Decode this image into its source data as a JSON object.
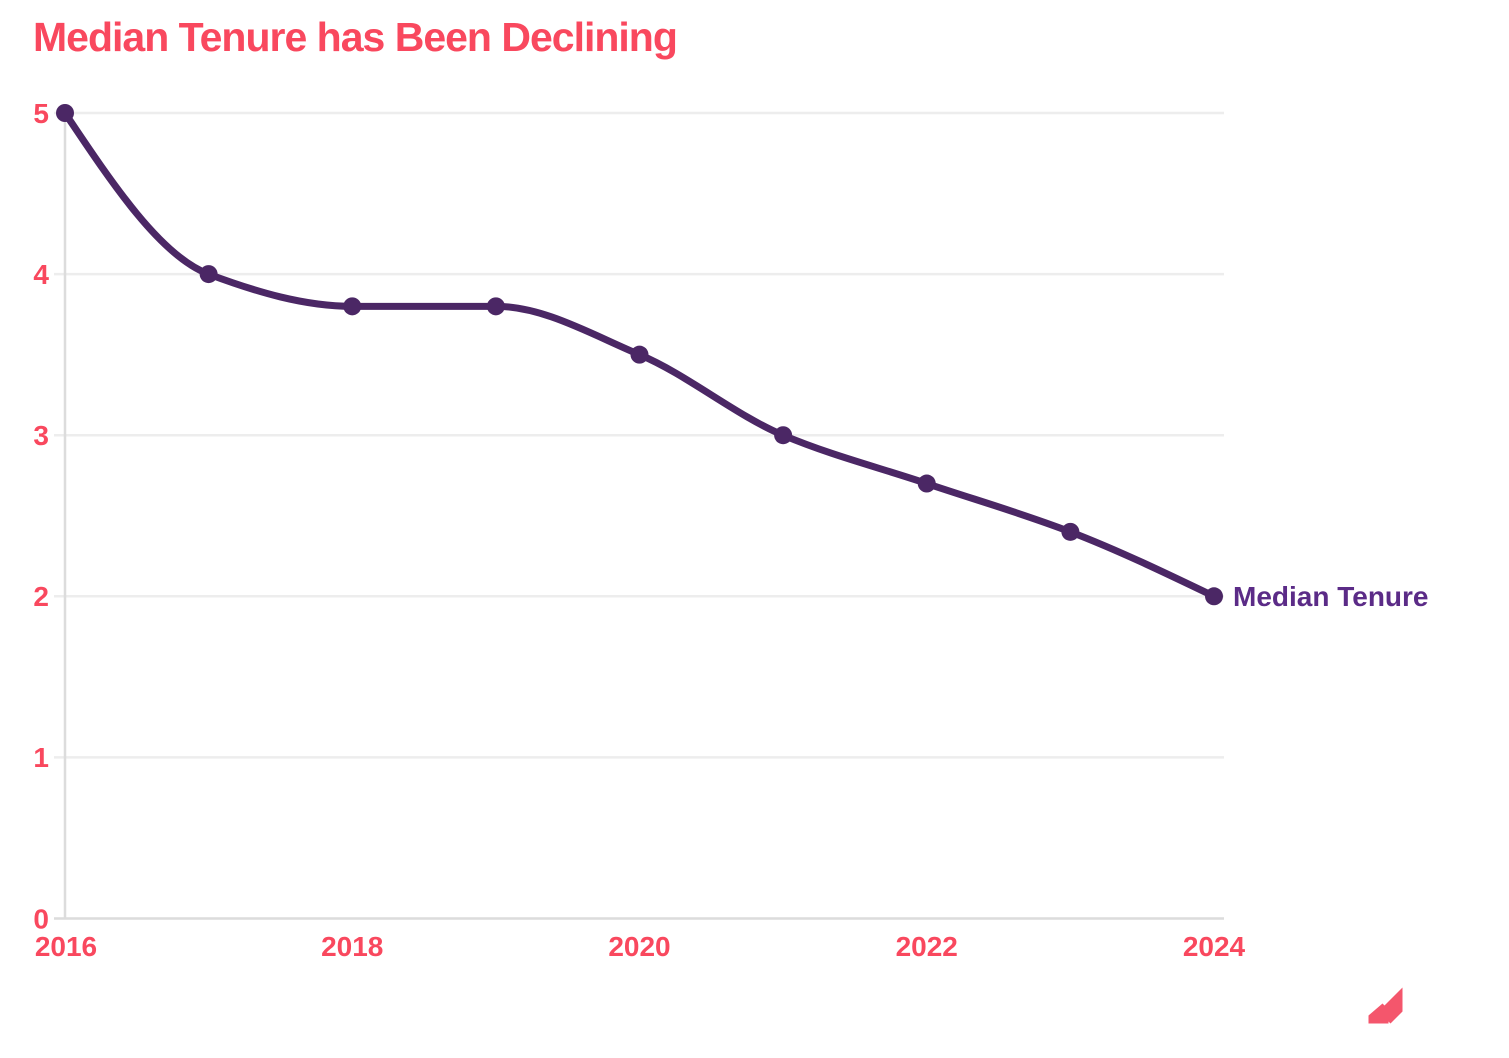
{
  "chart_data": {
    "type": "line",
    "title": "Median Tenure has Been Declining",
    "x": [
      2016,
      2017,
      2018,
      2019,
      2020,
      2021,
      2022,
      2023,
      2024
    ],
    "series": [
      {
        "name": "Median Tenure",
        "values": [
          5.0,
          4.0,
          3.8,
          3.8,
          3.5,
          3.0,
          2.7,
          2.4,
          2.0
        ]
      }
    ],
    "x_ticks": [
      "2016",
      "2018",
      "2020",
      "2022",
      "2024"
    ],
    "y_ticks": [
      0,
      1,
      2,
      3,
      4,
      5
    ],
    "xlim": [
      2016,
      2024
    ],
    "ylim": [
      0,
      5
    ],
    "xlabel": "",
    "ylabel": "",
    "grid": "horizontal",
    "legend_position": "inline-right-of-last-point",
    "curve": "monotone"
  },
  "colors": {
    "title": "#F9485E",
    "axis_label": "#F9485E",
    "line": "#4B2765",
    "point": "#4B2765",
    "series_label": "#5B2B87",
    "gridline": "#EDEDED",
    "axis_line": "#DCDCDC",
    "background": "#FFFFFF",
    "logo": "#F4566C"
  },
  "icons": {
    "brand_logo": "brand-logo-icon"
  }
}
